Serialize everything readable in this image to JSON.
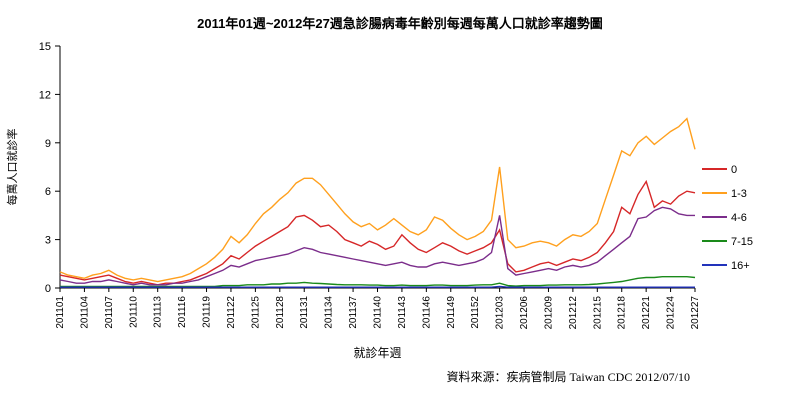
{
  "source": "資料來源：疾病管制局 Taiwan CDC 2012/07/10",
  "chart_data": {
    "type": "line",
    "title": "2011年01週~2012年27週急診腸病毒年齡別每週每萬人口就診率趨勢圖",
    "xlabel": "就診年週",
    "ylabel": "每萬人口就診率",
    "ylim": [
      0,
      15
    ],
    "yticks": [
      0,
      3,
      6,
      9,
      12,
      15
    ],
    "xtick_every": 3,
    "grid": false,
    "legend_position": "right",
    "categories": [
      "201101",
      "201102",
      "201103",
      "201104",
      "201105",
      "201106",
      "201107",
      "201108",
      "201109",
      "201110",
      "201111",
      "201112",
      "201113",
      "201114",
      "201115",
      "201116",
      "201117",
      "201118",
      "201119",
      "201120",
      "201121",
      "201122",
      "201123",
      "201124",
      "201125",
      "201126",
      "201127",
      "201128",
      "201129",
      "201130",
      "201131",
      "201132",
      "201133",
      "201134",
      "201135",
      "201136",
      "201137",
      "201138",
      "201139",
      "201140",
      "201141",
      "201142",
      "201143",
      "201144",
      "201145",
      "201146",
      "201147",
      "201148",
      "201149",
      "201150",
      "201151",
      "201152",
      "201201",
      "201202",
      "201203",
      "201204",
      "201205",
      "201206",
      "201207",
      "201208",
      "201209",
      "201210",
      "201211",
      "201212",
      "201213",
      "201214",
      "201215",
      "201216",
      "201217",
      "201218",
      "201219",
      "201220",
      "201221",
      "201222",
      "201223",
      "201224",
      "201225",
      "201226",
      "201227"
    ],
    "series": [
      {
        "name": "0",
        "color": "#d62728",
        "values": [
          0.8,
          0.7,
          0.6,
          0.5,
          0.6,
          0.7,
          0.8,
          0.6,
          0.4,
          0.3,
          0.4,
          0.3,
          0.2,
          0.3,
          0.3,
          0.4,
          0.5,
          0.7,
          0.9,
          1.2,
          1.5,
          2.0,
          1.8,
          2.2,
          2.6,
          2.9,
          3.2,
          3.5,
          3.8,
          4.4,
          4.5,
          4.2,
          3.8,
          3.9,
          3.5,
          3.0,
          2.8,
          2.6,
          2.9,
          2.7,
          2.4,
          2.6,
          3.3,
          2.8,
          2.4,
          2.2,
          2.5,
          2.8,
          2.6,
          2.3,
          2.1,
          2.3,
          2.5,
          2.8,
          3.6,
          1.5,
          1.0,
          1.1,
          1.3,
          1.5,
          1.6,
          1.4,
          1.6,
          1.8,
          1.7,
          1.9,
          2.2,
          2.8,
          3.5,
          5.0,
          4.6,
          5.8,
          6.6,
          5.0,
          5.4,
          5.2,
          5.7,
          6.0,
          5.9
        ]
      },
      {
        "name": "1-3",
        "color": "#ffa01e",
        "values": [
          1.0,
          0.8,
          0.7,
          0.6,
          0.8,
          0.9,
          1.1,
          0.8,
          0.6,
          0.5,
          0.6,
          0.5,
          0.4,
          0.5,
          0.6,
          0.7,
          0.9,
          1.2,
          1.5,
          1.9,
          2.4,
          3.2,
          2.8,
          3.3,
          4.0,
          4.6,
          5.0,
          5.5,
          5.9,
          6.5,
          6.8,
          6.8,
          6.4,
          5.8,
          5.2,
          4.6,
          4.1,
          3.8,
          4.0,
          3.6,
          3.9,
          4.3,
          3.9,
          3.5,
          3.3,
          3.6,
          4.4,
          4.2,
          3.7,
          3.3,
          3.0,
          3.2,
          3.5,
          4.2,
          7.5,
          3.0,
          2.5,
          2.6,
          2.8,
          2.9,
          2.8,
          2.6,
          3.0,
          3.3,
          3.2,
          3.5,
          4.0,
          5.5,
          7.0,
          8.5,
          8.2,
          9.0,
          9.4,
          8.9,
          9.3,
          9.7,
          10.0,
          10.5,
          8.6
        ]
      },
      {
        "name": "4-6",
        "color": "#7b2d8b",
        "values": [
          0.5,
          0.4,
          0.3,
          0.3,
          0.4,
          0.4,
          0.5,
          0.4,
          0.3,
          0.2,
          0.3,
          0.2,
          0.2,
          0.2,
          0.3,
          0.3,
          0.4,
          0.5,
          0.7,
          0.9,
          1.1,
          1.4,
          1.3,
          1.5,
          1.7,
          1.8,
          1.9,
          2.0,
          2.1,
          2.3,
          2.5,
          2.4,
          2.2,
          2.1,
          2.0,
          1.9,
          1.8,
          1.7,
          1.6,
          1.5,
          1.4,
          1.5,
          1.6,
          1.4,
          1.3,
          1.3,
          1.5,
          1.6,
          1.5,
          1.4,
          1.5,
          1.6,
          1.8,
          2.2,
          4.5,
          1.2,
          0.8,
          0.9,
          1.0,
          1.1,
          1.2,
          1.1,
          1.3,
          1.4,
          1.3,
          1.4,
          1.6,
          2.0,
          2.4,
          2.8,
          3.2,
          4.3,
          4.4,
          4.8,
          5.0,
          4.9,
          4.6,
          4.5,
          4.5
        ]
      },
      {
        "name": "7-15",
        "color": "#1a8a1a",
        "values": [
          0.1,
          0.1,
          0.1,
          0.1,
          0.1,
          0.1,
          0.1,
          0.1,
          0.1,
          0.1,
          0.1,
          0.1,
          0.1,
          0.1,
          0.1,
          0.1,
          0.1,
          0.1,
          0.1,
          0.1,
          0.15,
          0.15,
          0.15,
          0.2,
          0.2,
          0.2,
          0.25,
          0.25,
          0.3,
          0.3,
          0.35,
          0.3,
          0.28,
          0.25,
          0.22,
          0.2,
          0.2,
          0.2,
          0.18,
          0.18,
          0.15,
          0.15,
          0.18,
          0.15,
          0.15,
          0.15,
          0.18,
          0.18,
          0.15,
          0.15,
          0.15,
          0.18,
          0.2,
          0.2,
          0.3,
          0.15,
          0.12,
          0.15,
          0.15,
          0.15,
          0.18,
          0.18,
          0.2,
          0.2,
          0.2,
          0.22,
          0.25,
          0.3,
          0.35,
          0.4,
          0.5,
          0.6,
          0.65,
          0.65,
          0.7,
          0.7,
          0.7,
          0.7,
          0.65
        ]
      },
      {
        "name": "16+",
        "color": "#2233bb",
        "values": [
          0.05,
          0.05,
          0.05,
          0.05,
          0.05,
          0.05,
          0.05,
          0.05,
          0.05,
          0.05,
          0.05,
          0.05,
          0.05,
          0.05,
          0.05,
          0.05,
          0.05,
          0.05,
          0.05,
          0.05,
          0.05,
          0.05,
          0.05,
          0.05,
          0.05,
          0.05,
          0.05,
          0.05,
          0.05,
          0.05,
          0.05,
          0.05,
          0.05,
          0.05,
          0.05,
          0.05,
          0.05,
          0.05,
          0.05,
          0.05,
          0.05,
          0.05,
          0.05,
          0.05,
          0.05,
          0.05,
          0.05,
          0.05,
          0.05,
          0.05,
          0.05,
          0.05,
          0.05,
          0.05,
          0.1,
          0.05,
          0.05,
          0.05,
          0.05,
          0.05,
          0.05,
          0.05,
          0.05,
          0.05,
          0.05,
          0.05,
          0.05,
          0.05,
          0.05,
          0.05,
          0.05,
          0.05,
          0.05,
          0.05,
          0.05,
          0.05,
          0.05,
          0.05,
          0.05
        ]
      }
    ]
  }
}
